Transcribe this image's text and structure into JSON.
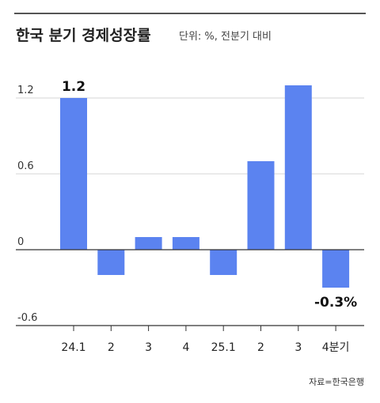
{
  "header": {
    "title": "한국 분기 경제성장률",
    "subtitle": "단위: %, 전분기 대비"
  },
  "source": "자료=한국은행",
  "colors": {
    "bar": "#5b83f0",
    "grid": "#d6d6d6",
    "axis": "#333333"
  },
  "chart_data": {
    "type": "bar",
    "categories": [
      "24.1",
      "2",
      "3",
      "4",
      "25.1",
      "2",
      "3",
      "4분기"
    ],
    "values": [
      1.2,
      -0.2,
      0.1,
      0.1,
      -0.2,
      0.7,
      1.3,
      -0.3
    ],
    "ylim": [
      -0.6,
      1.2
    ],
    "yticks": [
      "1.2",
      "0.6",
      "0",
      "-0.6"
    ],
    "grid": true,
    "annotations": [
      {
        "index": 0,
        "text": "1.2"
      },
      {
        "index": 7,
        "text": "-0.3%"
      }
    ]
  }
}
